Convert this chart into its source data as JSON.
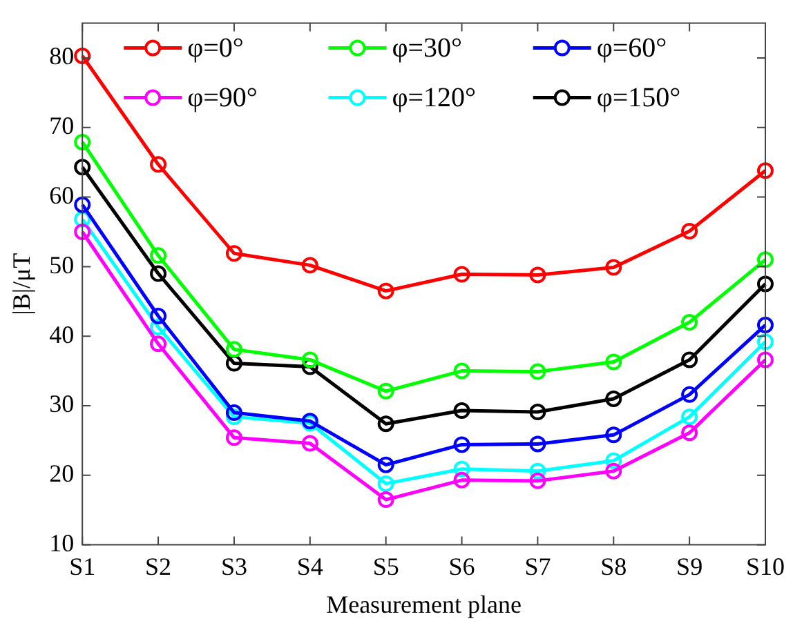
{
  "chart_data": {
    "type": "line",
    "xlabel": "Measurement plane",
    "ylabel": "|B|/μT",
    "categories": [
      "S1",
      "S2",
      "S3",
      "S4",
      "S5",
      "S6",
      "S7",
      "S8",
      "S9",
      "S10"
    ],
    "series": [
      {
        "name": "φ=0°",
        "color": "#ff0000",
        "values": [
          80.3,
          64.7,
          51.9,
          50.2,
          46.5,
          48.9,
          48.8,
          49.9,
          55.1,
          63.8
        ]
      },
      {
        "name": "φ=30°",
        "color": "#00ff00",
        "values": [
          67.9,
          51.6,
          38.1,
          36.6,
          32.1,
          35.0,
          34.9,
          36.3,
          42.0,
          51.0
        ]
      },
      {
        "name": "φ=60°",
        "color": "#0000ff",
        "values": [
          58.9,
          42.9,
          29.0,
          27.8,
          21.5,
          24.4,
          24.5,
          25.8,
          31.6,
          41.6
        ]
      },
      {
        "name": "φ=90°",
        "color": "#ff00ff",
        "values": [
          55.0,
          38.9,
          25.4,
          24.6,
          16.5,
          19.3,
          19.2,
          20.6,
          26.1,
          36.6
        ]
      },
      {
        "name": "φ=120°",
        "color": "#00ffff",
        "values": [
          56.8,
          41.3,
          28.4,
          27.5,
          18.8,
          20.9,
          20.6,
          22.1,
          28.4,
          39.2
        ]
      },
      {
        "name": "φ=150°",
        "color": "#000000",
        "values": [
          64.3,
          49.0,
          36.1,
          35.6,
          27.4,
          29.3,
          29.1,
          31.0,
          36.6,
          47.5
        ]
      }
    ],
    "ylim": [
      10,
      85
    ],
    "yticks": [
      10,
      20,
      30,
      40,
      50,
      60,
      70,
      80
    ],
    "grid": false,
    "legend": "top",
    "marker": "circle",
    "line_style": "solid"
  }
}
